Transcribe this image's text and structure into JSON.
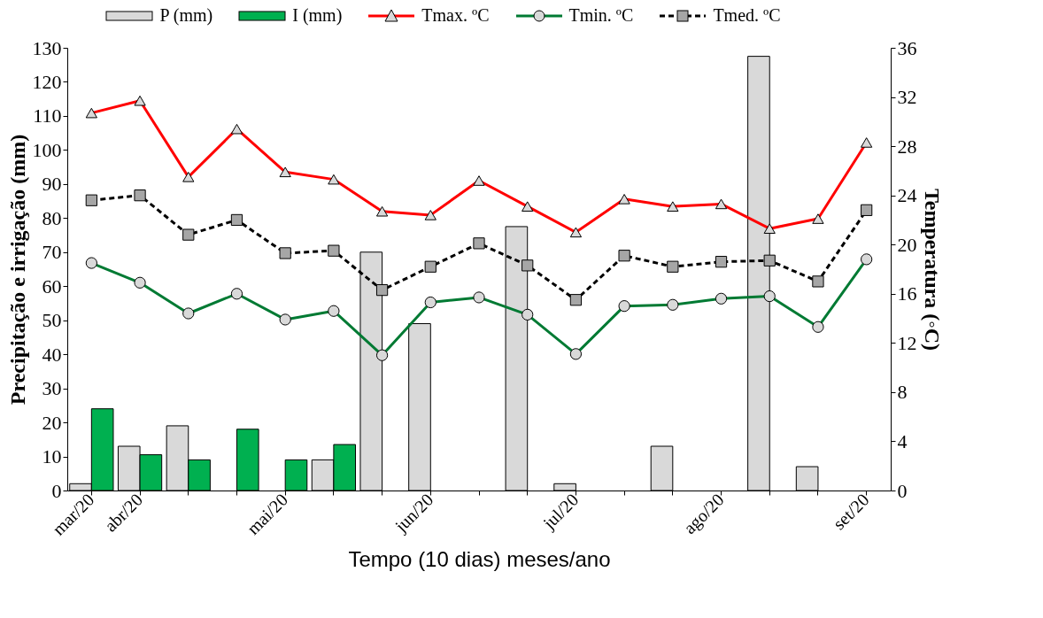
{
  "chart_data": {
    "type": "bar",
    "xlabel": "Tempo (10 dias) meses/ano",
    "ylabel": "Precipitação e irrigação (mm)",
    "y2label": "Temperatura (◦C)",
    "categories": [
      "mar/20",
      "abr/20",
      null,
      null,
      "mai/20",
      null,
      null,
      "jun/20",
      null,
      null,
      "jul/20",
      null,
      null,
      "ago/20",
      null,
      null,
      "set/20"
    ],
    "series": [
      {
        "name": "P (mm)",
        "type": "bar",
        "color": "#d9d9d9",
        "values": [
          2,
          13,
          19,
          null,
          null,
          9,
          70,
          49,
          null,
          77.5,
          2,
          null,
          13,
          null,
          127.5,
          7,
          null
        ]
      },
      {
        "name": "I (mm)",
        "type": "bar",
        "color": "#00b050",
        "values": [
          24,
          10.5,
          9,
          18,
          9,
          13.5,
          null,
          null,
          null,
          null,
          null,
          null,
          null,
          null,
          null,
          null,
          null
        ]
      },
      {
        "name": "Tmax. ºC",
        "type": "line",
        "axis": "y2",
        "color": "#ff0000",
        "marker": "triangle",
        "line_style": "solid",
        "values": [
          30.7,
          31.7,
          25.5,
          29.4,
          25.9,
          25.3,
          22.7,
          22.4,
          25.2,
          23.1,
          21.0,
          23.7,
          23.1,
          23.3,
          21.3,
          22.1,
          28.3
        ]
      },
      {
        "name": "Tmin. ºC",
        "type": "line",
        "axis": "y2",
        "color": "#007a33",
        "marker": "circle",
        "line_style": "solid",
        "values": [
          18.5,
          16.9,
          14.4,
          16.0,
          13.9,
          14.6,
          11.0,
          15.3,
          15.7,
          14.3,
          11.1,
          15.0,
          15.1,
          15.6,
          15.8,
          13.3,
          18.8
        ]
      },
      {
        "name": "Tmed. ºC",
        "type": "line",
        "axis": "y2",
        "color": "#000000",
        "marker": "square",
        "line_style": "dashed",
        "values": [
          23.6,
          24.0,
          20.8,
          22.0,
          19.3,
          19.5,
          16.3,
          18.2,
          20.1,
          18.3,
          15.5,
          19.1,
          18.2,
          18.6,
          18.7,
          17.0,
          22.8
        ]
      }
    ],
    "ylim": [
      0,
      130
    ],
    "yticks": [
      0,
      10,
      20,
      30,
      40,
      50,
      60,
      70,
      80,
      90,
      100,
      110,
      120,
      130
    ],
    "y2lim": [
      0,
      36
    ],
    "y2ticks": [
      0,
      4,
      8,
      12,
      16,
      20,
      24,
      28,
      32,
      36
    ],
    "legend": "top",
    "grid": false
  }
}
